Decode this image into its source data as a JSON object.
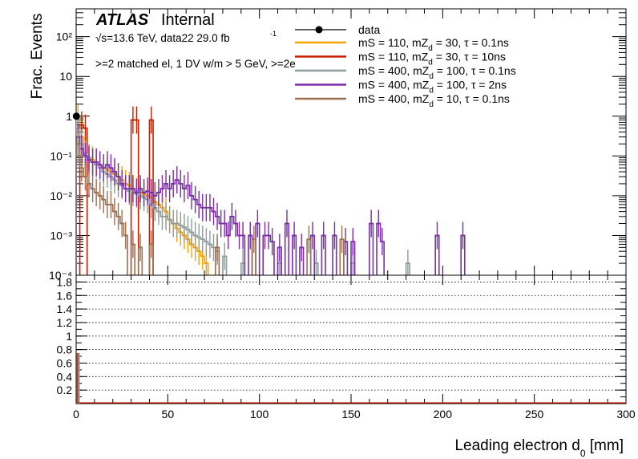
{
  "chart_data": [
    {
      "type": "step-histogram",
      "label_atlas": "ATLAS",
      "label_status": "Internal",
      "energy_label": "√s=13.6 TeV, data22 29.0 fb",
      "lumi_exponent": "-1",
      "selection_label": ">=2 matched el, 1 DV w/m > 5 GeV, >=2e",
      "ylabel": "Frac. Events",
      "xlabel": "Leading electron d",
      "xlabel_sub": "0",
      "xlabel_unit": " [mm]",
      "xlim": [
        0,
        300
      ],
      "ylim": [
        0.0001,
        500
      ],
      "yscale": "log",
      "ytick_labels": [
        "10⁻⁴",
        "10⁻³",
        "10⁻²",
        "10⁻¹",
        "1",
        "10",
        "10²"
      ],
      "bin_width": 2,
      "series": [
        {
          "name": "data",
          "color": "#000000",
          "marker": "circle",
          "points": [
            [
              1,
              1.0
            ]
          ]
        },
        {
          "name": "mS = 110, mZd = 30, τ = 0.1ns",
          "color": "#f5a300",
          "bins": [
            [
              0,
              0.9
            ],
            [
              2,
              0.3
            ],
            [
              4,
              0.12
            ],
            [
              6,
              0.09
            ],
            [
              8,
              0.08
            ],
            [
              10,
              0.07
            ],
            [
              12,
              0.06
            ],
            [
              14,
              0.05
            ],
            [
              16,
              0.045
            ],
            [
              18,
              0.04
            ],
            [
              20,
              0.035
            ],
            [
              22,
              0.03
            ],
            [
              24,
              0.025
            ],
            [
              26,
              0.02
            ],
            [
              28,
              0.018
            ],
            [
              30,
              0.015
            ],
            [
              32,
              0.013
            ],
            [
              34,
              0.012
            ],
            [
              36,
              0.011
            ],
            [
              38,
              0.01
            ],
            [
              40,
              0.009
            ],
            [
              42,
              0.007
            ],
            [
              44,
              0.006
            ],
            [
              46,
              0.005
            ],
            [
              48,
              0.004
            ],
            [
              50,
              0.0025
            ],
            [
              52,
              0.002
            ],
            [
              54,
              0.0015
            ],
            [
              56,
              0.0012
            ],
            [
              58,
              0.001
            ],
            [
              60,
              0.0008
            ],
            [
              62,
              0.0006
            ],
            [
              64,
              0.0005
            ],
            [
              66,
              0.0004
            ],
            [
              68,
              0.0003
            ],
            [
              70,
              0.0002
            ]
          ]
        },
        {
          "name": "mS = 110, mZd = 30, τ = 10ns",
          "color": "#c81e00",
          "bins": [
            [
              2,
              0.6
            ],
            [
              4,
              0.5
            ],
            [
              30,
              0.8
            ],
            [
              32,
              0.8
            ],
            [
              40,
              0.8
            ]
          ]
        },
        {
          "name": "mS = 400, mZd = 100, τ = 0.1ns",
          "color": "#8f9c9c",
          "bins": [
            [
              0,
              0.5
            ],
            [
              2,
              0.2
            ],
            [
              4,
              0.11
            ],
            [
              6,
              0.09
            ],
            [
              8,
              0.07
            ],
            [
              10,
              0.06
            ],
            [
              12,
              0.05
            ],
            [
              14,
              0.04
            ],
            [
              16,
              0.035
            ],
            [
              18,
              0.03
            ],
            [
              20,
              0.025
            ],
            [
              22,
              0.02
            ],
            [
              24,
              0.018
            ],
            [
              26,
              0.015
            ],
            [
              28,
              0.013
            ],
            [
              30,
              0.012
            ],
            [
              32,
              0.011
            ],
            [
              34,
              0.01
            ],
            [
              36,
              0.009
            ],
            [
              38,
              0.008
            ],
            [
              40,
              0.006
            ],
            [
              42,
              0.005
            ],
            [
              44,
              0.004
            ],
            [
              46,
              0.003
            ],
            [
              48,
              0.003
            ],
            [
              50,
              0.0025
            ],
            [
              52,
              0.002
            ],
            [
              54,
              0.002
            ],
            [
              56,
              0.0018
            ],
            [
              58,
              0.0016
            ],
            [
              60,
              0.0014
            ],
            [
              62,
              0.0012
            ],
            [
              64,
              0.001
            ],
            [
              66,
              0.0009
            ],
            [
              68,
              0.0008
            ],
            [
              70,
              0.0007
            ],
            [
              72,
              0.0006
            ],
            [
              74,
              0.0005
            ],
            [
              76,
              0.0004
            ],
            [
              80,
              0.0003
            ],
            [
              90,
              0.0002
            ],
            [
              110,
              0.0002
            ],
            [
              130,
              0.0002
            ],
            [
              150,
              0.0002
            ],
            [
              180,
              0.0002
            ]
          ]
        },
        {
          "name": "mS = 400, mZd = 100, τ = 2ns",
          "color": "#7a2fa8",
          "bins": [
            [
              0,
              0.3
            ],
            [
              2,
              0.15
            ],
            [
              4,
              0.1
            ],
            [
              6,
              0.08
            ],
            [
              8,
              0.07
            ],
            [
              10,
              0.07
            ],
            [
              12,
              0.06
            ],
            [
              14,
              0.05
            ],
            [
              16,
              0.06
            ],
            [
              18,
              0.05
            ],
            [
              20,
              0.04
            ],
            [
              22,
              0.03
            ],
            [
              24,
              0.02
            ],
            [
              26,
              0.015
            ],
            [
              28,
              0.015
            ],
            [
              30,
              0.015
            ],
            [
              32,
              0.012
            ],
            [
              34,
              0.015
            ],
            [
              36,
              0.012
            ],
            [
              38,
              0.013
            ],
            [
              40,
              0.012
            ],
            [
              42,
              0.01
            ],
            [
              44,
              0.012
            ],
            [
              46,
              0.015
            ],
            [
              48,
              0.02
            ],
            [
              50,
              0.015
            ],
            [
              52,
              0.02
            ],
            [
              54,
              0.025
            ],
            [
              56,
              0.02
            ],
            [
              58,
              0.015
            ],
            [
              60,
              0.018
            ],
            [
              62,
              0.01
            ],
            [
              64,
              0.008
            ],
            [
              66,
              0.006
            ],
            [
              68,
              0.005
            ],
            [
              70,
              0.005
            ],
            [
              72,
              0.005
            ],
            [
              74,
              0.004
            ],
            [
              76,
              0.003
            ],
            [
              78,
              0.002
            ],
            [
              80,
              0.002
            ],
            [
              82,
              0.001
            ],
            [
              84,
              0.003
            ],
            [
              86,
              0.002
            ],
            [
              88,
              0.001
            ],
            [
              90,
              0.001
            ],
            [
              94,
              0.001
            ],
            [
              98,
              0.002
            ],
            [
              102,
              0.001
            ],
            [
              104,
              0.001
            ],
            [
              106,
              0.0007
            ],
            [
              110,
              0.0005
            ],
            [
              114,
              0.002
            ],
            [
              118,
              0.001
            ],
            [
              122,
              0.0005
            ],
            [
              128,
              0.001
            ],
            [
              134,
              0.001
            ],
            [
              140,
              0.001
            ],
            [
              146,
              0.0007
            ],
            [
              150,
              0.0007
            ],
            [
              160,
              0.002
            ],
            [
              164,
              0.002
            ],
            [
              166,
              0.0007
            ],
            [
              196,
              0.001
            ],
            [
              210,
              0.001
            ]
          ]
        },
        {
          "name": "mS = 400, mZd = 10, τ = 0.1ns",
          "color": "#9c6e50",
          "bins": [
            [
              0,
              0.2
            ],
            [
              2,
              0.05
            ],
            [
              4,
              0.03
            ],
            [
              6,
              0.02
            ],
            [
              8,
              0.015
            ],
            [
              10,
              0.012
            ],
            [
              12,
              0.01
            ],
            [
              14,
              0.008
            ],
            [
              16,
              0.006
            ],
            [
              18,
              0.006
            ],
            [
              20,
              0.004
            ],
            [
              22,
              0.003
            ],
            [
              24,
              0.002
            ],
            [
              26,
              0.001
            ],
            [
              30,
              0.0006
            ],
            [
              34,
              0.0005
            ],
            [
              40,
              0.0006
            ],
            [
              76,
              0.0005
            ],
            [
              96,
              0.0008
            ],
            [
              126,
              0.0008
            ],
            [
              144,
              0.0008
            ]
          ]
        }
      ],
      "legend_items": [
        {
          "prefix": "mS = 110, mZ",
          "sub": "d",
          "suffix": " = 30, τ = 0.1ns"
        },
        {
          "prefix": "mS = 110, mZ",
          "sub": "d",
          "suffix": " = 30, τ = 10ns"
        },
        {
          "prefix": "mS = 400, mZ",
          "sub": "d",
          "suffix": " = 100, τ = 0.1ns"
        },
        {
          "prefix": "mS = 400, mZ",
          "sub": "d",
          "suffix": " = 100, τ = 2ns"
        },
        {
          "prefix": "mS = 400, mZ",
          "sub": "d",
          "suffix": " = 10, τ = 0.1ns"
        }
      ],
      "legend_placement": "top-right"
    },
    {
      "type": "ratio",
      "ylim": [
        0,
        1.9
      ],
      "yticks": [
        0.2,
        0.4,
        0.6,
        0.8,
        1,
        1.2,
        1.4,
        1.6,
        1.8
      ],
      "ytick_labels": [
        "0.2",
        "0.4",
        "0.6",
        "0.8",
        "1",
        "1.2",
        "1.4",
        "1.6",
        "1.8"
      ],
      "grid": true,
      "xlim": [
        0,
        300
      ],
      "xticks": [
        0,
        50,
        100,
        150,
        200,
        250,
        300
      ],
      "xtick_labels": [
        "0",
        "50",
        "100",
        "150",
        "200",
        "250",
        "300"
      ]
    }
  ]
}
